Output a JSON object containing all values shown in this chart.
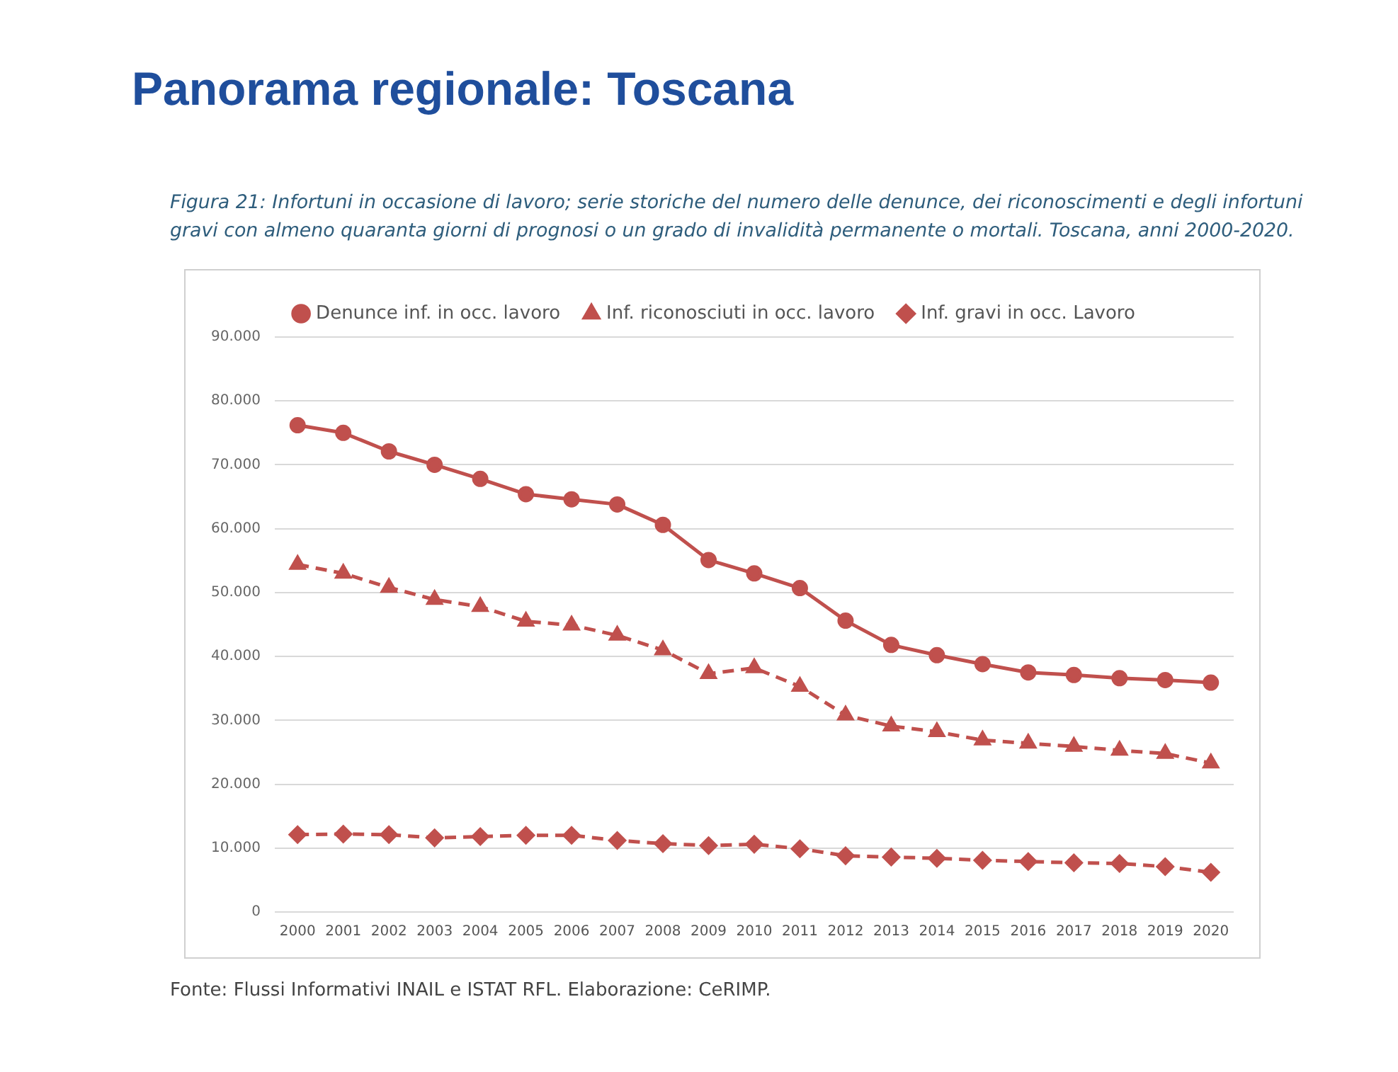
{
  "chart_data": {
    "type": "line",
    "title": "Panorama regionale: Toscana",
    "subtitle": "Figura 21: Infortuni in occasione di lavoro; serie storiche del numero delle denunce, dei riconoscimenti e degli infortuni gravi con almeno quaranta giorni di prognosi o un grado di invalidità permanente o mortali. Toscana, anni 2000-2020.",
    "annotations": [
      "Fonte: Flussi Informativi INAIL e ISTAT RFL. Elaborazione: CeRIMP."
    ],
    "categories": [
      "2000",
      "2001",
      "2002",
      "2003",
      "2004",
      "2005",
      "2006",
      "2007",
      "2008",
      "2009",
      "2010",
      "2011",
      "2012",
      "2013",
      "2014",
      "2015",
      "2016",
      "2017",
      "2018",
      "2019",
      "2020"
    ],
    "series": [
      {
        "name": "Denunce inf. in occ. lavoro",
        "color": "#c0504d",
        "marker": "circle",
        "line_style": "solid",
        "values": [
          76200,
          75000,
          72100,
          70000,
          67800,
          65400,
          64600,
          63800,
          60600,
          55100,
          53000,
          50700,
          45600,
          41800,
          40200,
          38800,
          37500,
          37100,
          36600,
          36300,
          35900
        ]
      },
      {
        "name": "Inf. riconosciuti in occ. lavoro",
        "color": "#c0504d",
        "marker": "triangle",
        "line_style": "dashed",
        "values": [
          54400,
          53000,
          50800,
          48900,
          47800,
          45500,
          44900,
          43300,
          41000,
          37300,
          38200,
          35300,
          30800,
          29100,
          28200,
          26900,
          26400,
          25900,
          25300,
          24800,
          23300
        ]
      },
      {
        "name": "Inf. gravi in occ. Lavoro",
        "color": "#c0504d",
        "marker": "diamond",
        "line_style": "dashed",
        "values": [
          12100,
          12200,
          12100,
          11600,
          11800,
          12000,
          12000,
          11200,
          10700,
          10400,
          10600,
          9900,
          8800,
          8600,
          8400,
          8100,
          7900,
          7700,
          7600,
          7100,
          6200
        ]
      }
    ],
    "ylim": [
      0,
      90000
    ],
    "yticks": [
      0,
      {
        "value": 10000,
        "label": "10.000"
      },
      {
        "value": 20000,
        "label": "20.000"
      },
      {
        "value": 30000,
        "label": "30.000"
      },
      {
        "value": 40000,
        "label": "40.000"
      },
      {
        "value": 50000,
        "label": "50.000"
      },
      {
        "value": 60000,
        "label": "60.000"
      },
      {
        "value": 70000,
        "label": "70.000"
      },
      {
        "value": 80000,
        "label": "80.000"
      },
      {
        "value": 90000,
        "label": "90.000"
      }
    ],
    "grid": "y",
    "legend": "top"
  }
}
